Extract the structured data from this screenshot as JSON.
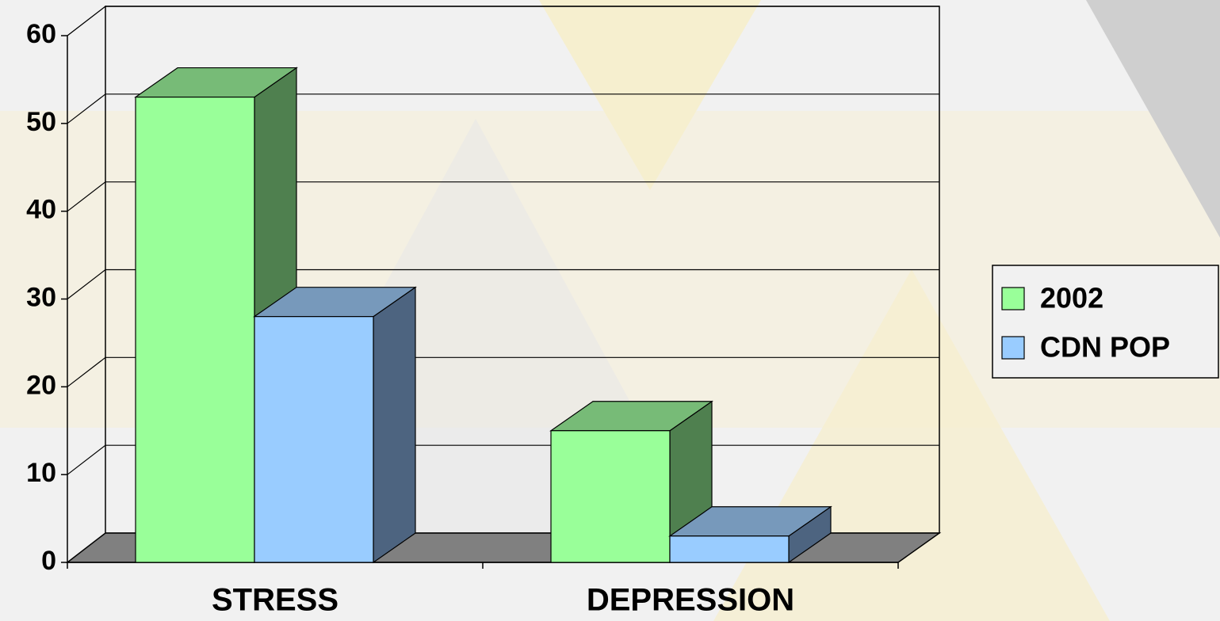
{
  "chart_data": {
    "type": "bar3d",
    "categories": [
      "STRESS",
      "DEPRESSION"
    ],
    "series": [
      {
        "name": "2002",
        "color": "#99ff99",
        "side": "#4f804f",
        "top": "#77bb77",
        "values": [
          53,
          15
        ]
      },
      {
        "name": "CDN POP",
        "color": "#99ccff",
        "side": "#4d6480",
        "top": "#7799bb",
        "values": [
          28,
          3
        ]
      }
    ],
    "ylim": [
      0,
      60
    ],
    "yticks": [
      0,
      10,
      20,
      30,
      40,
      50,
      60
    ],
    "grid": true,
    "legend": "right"
  }
}
